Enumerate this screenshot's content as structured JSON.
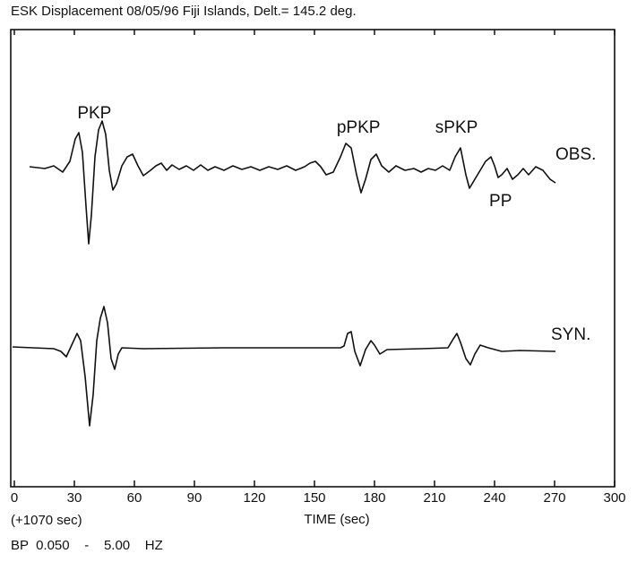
{
  "chart_data": {
    "type": "line",
    "title": "ESK Displacement 08/05/96 Fiji Islands, Delt.= 145.2 deg.",
    "xlabel": "TIME (sec)",
    "offset": "(+1070 sec)",
    "filter": "BP  0.050    -    5.00    HZ",
    "trace_labels": [
      "OBS.",
      "SYN."
    ],
    "annotations": [
      {
        "text": "PKP",
        "x": 40
      },
      {
        "text": "pPKP",
        "x": 172
      },
      {
        "text": "sPKP",
        "x": 221
      },
      {
        "text": "PP",
        "x": 243
      }
    ],
    "xlim": [
      0,
      300
    ],
    "xticks": [
      0,
      30,
      60,
      90,
      120,
      150,
      180,
      210,
      240,
      270,
      300
    ]
  }
}
